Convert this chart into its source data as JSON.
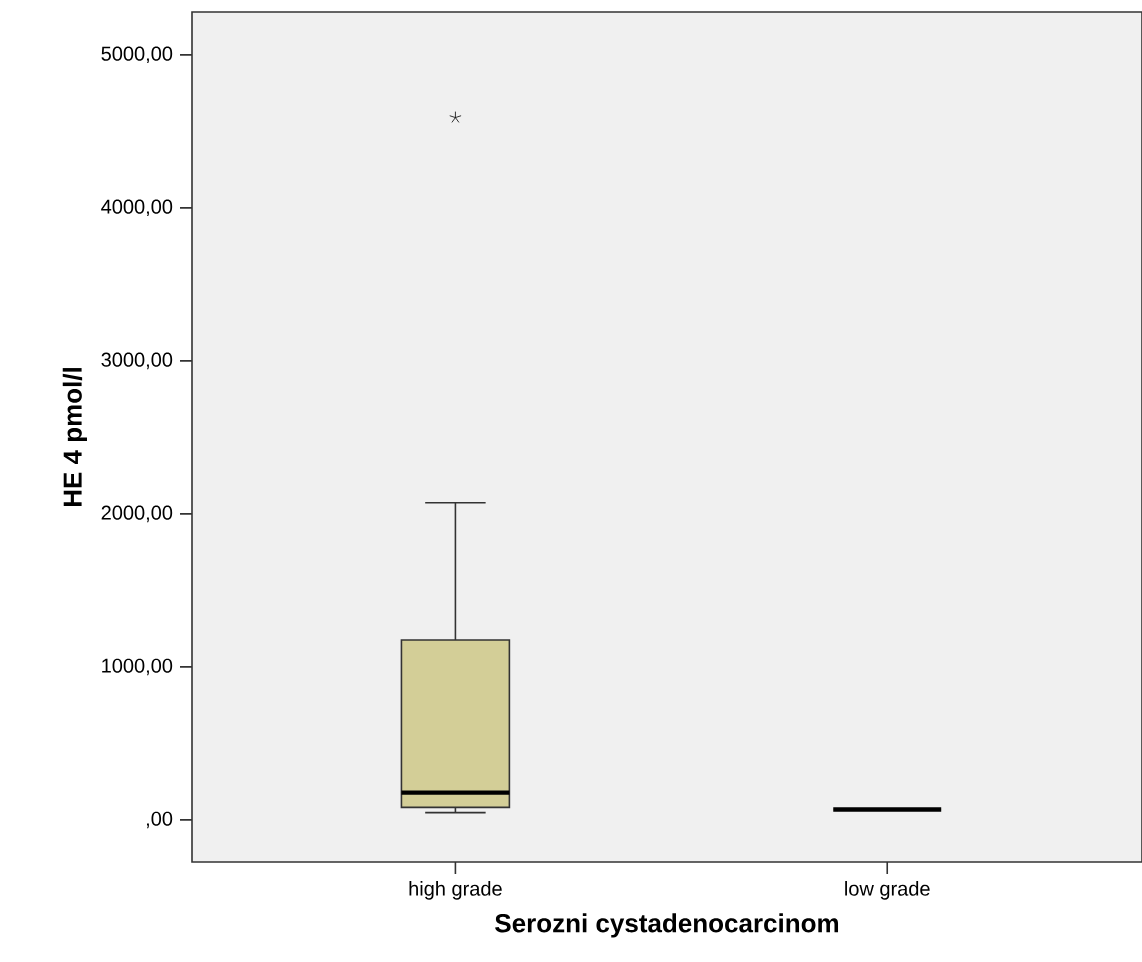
{
  "chart_data": {
    "type": "box",
    "xlabel": "Serozni cystadenocarcinom",
    "ylabel": "HE 4 pmol/l",
    "categories": [
      "high grade",
      "low grade"
    ],
    "boxes": [
      {
        "low": 48,
        "q1": 82,
        "median": 178,
        "q3": 1176,
        "high": 2073,
        "outliers": [
          4590
        ]
      },
      {
        "low": 68,
        "q1": 68,
        "median": 68,
        "q3": 68,
        "high": 68
      }
    ],
    "color": "#d3ce97",
    "ylim": [
      -275,
      5280
    ],
    "yticks": [
      {
        "value": 0,
        "label": ",00"
      },
      {
        "value": 1000,
        "label": "1000,00"
      },
      {
        "value": 2000,
        "label": "2000,00"
      },
      {
        "value": 3000,
        "label": "3000,00"
      },
      {
        "value": 4000,
        "label": "4000,00"
      },
      {
        "value": 5000,
        "label": "5000,00"
      }
    ]
  }
}
